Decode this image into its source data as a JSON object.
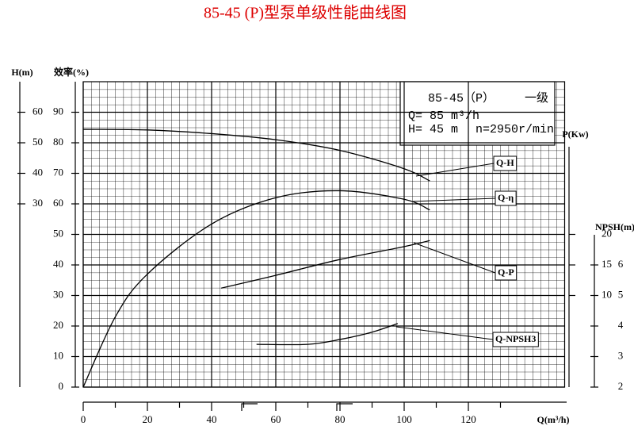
{
  "chart_data": {
    "type": "line",
    "title": "85-45 (P)型泵单级性能曲线图",
    "xlabel": "Q(m³/h)",
    "xlim": [
      0,
      150
    ],
    "xticks": [
      0,
      20,
      40,
      60,
      80,
      100,
      120
    ],
    "xminorticks": [
      10,
      30,
      50,
      70,
      90,
      110,
      130
    ],
    "ylabel": "效率(%)",
    "ylim": [
      0,
      100
    ],
    "yticks": [
      0,
      10,
      20,
      30,
      40,
      50,
      60,
      70,
      80,
      90
    ],
    "h_axis": {
      "label": "H(m)",
      "lim": [
        -30,
        70
      ],
      "ticks": [
        30,
        40,
        50,
        60
      ]
    },
    "p_axis": {
      "label": "P(Kw)",
      "lim": [
        -5,
        45
      ],
      "ticks": [
        10,
        15,
        20
      ]
    },
    "npsh_axis": {
      "label": "NPSH(m)",
      "lim": [
        2,
        12
      ],
      "ticks": [
        2,
        3,
        4,
        5,
        6
      ]
    },
    "grid": true,
    "info": {
      "model": "85-45（P）",
      "stage": "一级",
      "flow": "Q= 85 m³/h",
      "head": "H= 45 m",
      "speed": "n=2950r/min"
    },
    "series": [
      {
        "name": "Q-H",
        "axis": "h",
        "color": "#000",
        "x": [
          0,
          20,
          40,
          60,
          80,
          100,
          108
        ],
        "values": [
          54.4,
          54.2,
          53,
          51,
          47.5,
          41.5,
          37.5
        ]
      },
      {
        "name": "Q-η",
        "axis": "y",
        "color": "#000",
        "x": [
          0,
          10,
          20,
          40,
          60,
          80,
          100,
          108
        ],
        "values": [
          0,
          23,
          37,
          53.4,
          62,
          64.3,
          61.5,
          58
        ]
      },
      {
        "name": "Q-P",
        "axis": "p",
        "color": "#000",
        "x": [
          43,
          60,
          80,
          100,
          108
        ],
        "values": [
          11.2,
          13.3,
          15.9,
          18,
          19
        ]
      },
      {
        "name": "Q-NPSH3",
        "axis": "npsh",
        "color": "#000",
        "x": [
          54,
          70,
          80,
          90,
          98
        ],
        "values": [
          3.4,
          3.4,
          3.56,
          3.8,
          4.08
        ]
      }
    ]
  }
}
